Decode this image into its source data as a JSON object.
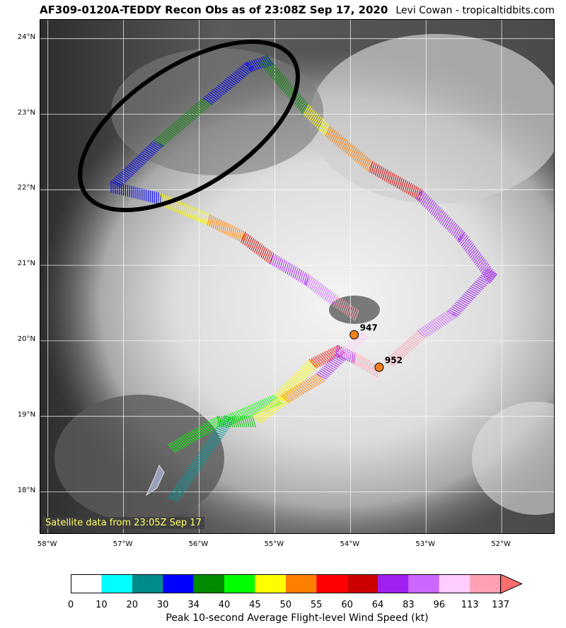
{
  "header": {
    "title": "AF309-0120A-TEDDY Recon Obs as of 23:08Z Sep 17, 2020",
    "credit": "Levi Cowan - tropicaltidbits.com"
  },
  "map": {
    "satellite_label": "Satellite data from 23:05Z Sep 17",
    "lat_labels": [
      "24°N",
      "23°N",
      "22°N",
      "21°N",
      "20°N",
      "19°N",
      "18°N"
    ],
    "lon_labels": [
      "58°W",
      "57°W",
      "56°W",
      "55°W",
      "54°W",
      "53°W",
      "52°W"
    ],
    "pressure_obs": [
      {
        "value": "947",
        "lat": 20.08,
        "lon": -53.95
      },
      {
        "value": "952",
        "lat": 19.65,
        "lon": -53.62
      }
    ]
  },
  "colorbar": {
    "ticks": [
      "0",
      "10",
      "20",
      "30",
      "34",
      "40",
      "45",
      "50",
      "55",
      "60",
      "64",
      "83",
      "96",
      "113",
      "137"
    ],
    "colors": [
      "#ffffff",
      "#00ffff",
      "#008b8b",
      "#0000ff",
      "#008b00",
      "#00ff00",
      "#ffff00",
      "#ff7f00",
      "#ff0000",
      "#cd0000",
      "#a020f0",
      "#cc66ff",
      "#ffccff",
      "#ffa0b4"
    ],
    "extend_color": "#ff6f6f",
    "label": "Peak 10-second Average Flight-level Wind Speed (kt)"
  }
}
